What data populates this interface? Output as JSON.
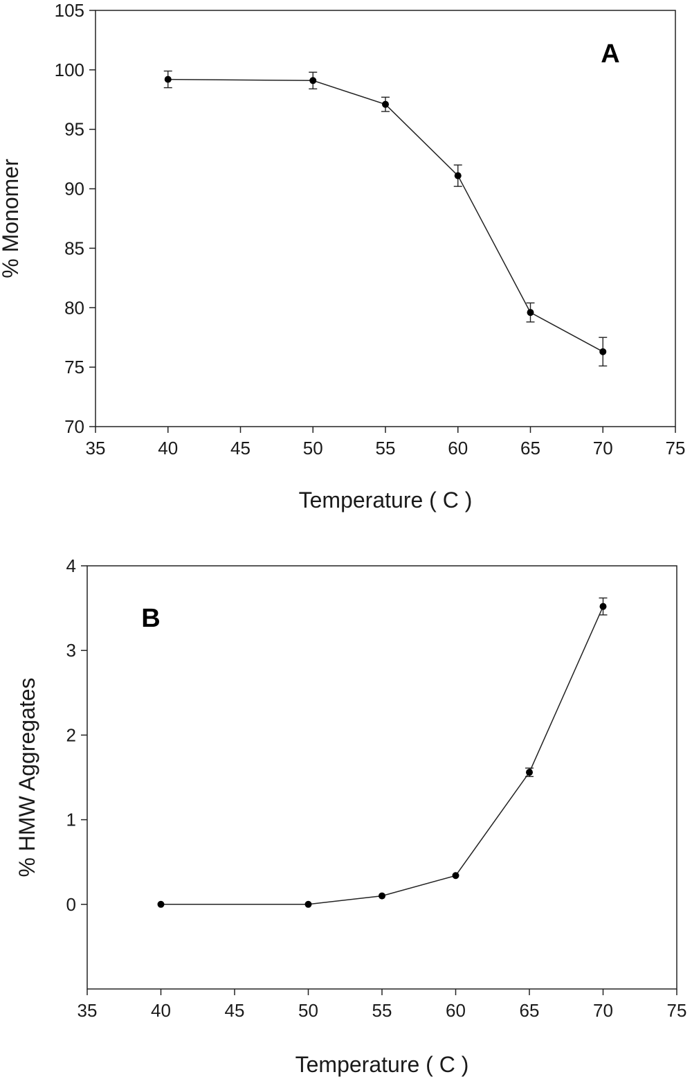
{
  "chart_data": [
    {
      "type": "line",
      "panel_label": "A",
      "xlabel": "Temperature ( C )",
      "ylabel": "% Monomer",
      "xlim": [
        35,
        75
      ],
      "ylim": [
        70,
        105
      ],
      "xticks": [
        35,
        40,
        45,
        50,
        55,
        60,
        65,
        70,
        75
      ],
      "yticks": [
        70,
        75,
        80,
        85,
        90,
        95,
        100,
        105
      ],
      "grid": false,
      "series": [
        {
          "x": [
            40,
            50,
            55,
            60,
            65,
            70
          ],
          "y": [
            99.2,
            99.1,
            97.1,
            91.1,
            79.6,
            76.3
          ],
          "yerr": [
            0.7,
            0.7,
            0.6,
            0.9,
            0.8,
            1.2
          ]
        }
      ]
    },
    {
      "type": "line",
      "panel_label": "B",
      "xlabel": "Temperature ( C )",
      "ylabel": "% HMW Aggregates",
      "xlim": [
        35,
        75
      ],
      "ylim": [
        -1,
        4
      ],
      "xticks": [
        35,
        40,
        45,
        50,
        55,
        60,
        65,
        70,
        75
      ],
      "yticks": [
        0,
        1,
        2,
        3,
        4
      ],
      "grid": false,
      "series": [
        {
          "x": [
            40,
            50,
            55,
            60,
            65,
            70
          ],
          "y": [
            0,
            0,
            0.1,
            0.34,
            1.56,
            3.52
          ],
          "yerr": [
            0,
            0,
            0,
            0,
            0.05,
            0.1
          ]
        }
      ]
    }
  ]
}
